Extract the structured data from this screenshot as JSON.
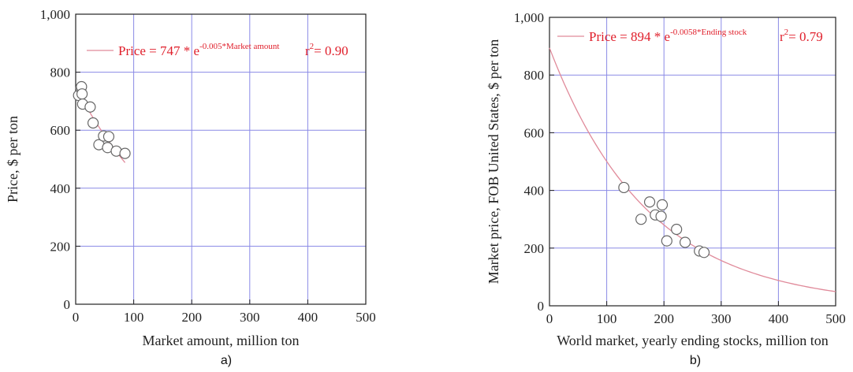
{
  "chart_data": [
    {
      "type": "scatter",
      "panel_label": "a)",
      "title": "",
      "xlabel": "Market amount, million ton",
      "ylabel": "Price, $ per ton",
      "xlim": [
        0,
        500
      ],
      "ylim": [
        0,
        1000
      ],
      "xticks": [
        "0",
        "100",
        "200",
        "300",
        "400",
        "500"
      ],
      "yticks": [
        "0",
        "200",
        "400",
        "600",
        "800",
        "1,000"
      ],
      "grid": true,
      "legend_position": "top",
      "colors": {
        "grid": "#8a8ae6",
        "fit": "#e08a9a",
        "marker_edge": "#666666",
        "annotation": "#e0202c"
      },
      "points": [
        {
          "x": 5,
          "y": 720
        },
        {
          "x": 9,
          "y": 745
        },
        {
          "x": 10,
          "y": 750
        },
        {
          "x": 11,
          "y": 725
        },
        {
          "x": 12,
          "y": 690
        },
        {
          "x": 25,
          "y": 680
        },
        {
          "x": 30,
          "y": 625
        },
        {
          "x": 40,
          "y": 550
        },
        {
          "x": 48,
          "y": 580
        },
        {
          "x": 55,
          "y": 540
        },
        {
          "x": 57,
          "y": 578
        },
        {
          "x": 70,
          "y": 528
        },
        {
          "x": 85,
          "y": 520
        }
      ],
      "fit": {
        "label_prefix": "Price = 747 * e",
        "label_exponent": "-0.005*Market amount",
        "r2_prefix": "r",
        "r2_sup": "2",
        "r2_value": "= 0.90",
        "a": 747,
        "b": -0.005,
        "x_range": [
          0,
          85
        ]
      }
    },
    {
      "type": "scatter",
      "panel_label": "b)",
      "title": "",
      "xlabel": "World market, yearly ending stocks, million ton",
      "ylabel": "Market price, FOB United States, $ per ton",
      "xlim": [
        0,
        500
      ],
      "ylim": [
        0,
        1000
      ],
      "xticks": [
        "0",
        "100",
        "200",
        "300",
        "400",
        "500"
      ],
      "yticks": [
        "0",
        "200",
        "400",
        "600",
        "800",
        "1,000"
      ],
      "grid": true,
      "legend_position": "top",
      "colors": {
        "grid": "#8a8ae6",
        "fit": "#e08a9a",
        "marker_edge": "#666666",
        "annotation": "#e0202c"
      },
      "points": [
        {
          "x": 130,
          "y": 410
        },
        {
          "x": 160,
          "y": 300
        },
        {
          "x": 175,
          "y": 360
        },
        {
          "x": 185,
          "y": 315
        },
        {
          "x": 195,
          "y": 310
        },
        {
          "x": 197,
          "y": 350
        },
        {
          "x": 205,
          "y": 225
        },
        {
          "x": 222,
          "y": 265
        },
        {
          "x": 237,
          "y": 220
        },
        {
          "x": 262,
          "y": 190
        },
        {
          "x": 270,
          "y": 185
        }
      ],
      "fit": {
        "label_prefix": "Price = 894 * e",
        "label_exponent": "-0.0058*Ending stock",
        "r2_prefix": "r",
        "r2_sup": "2",
        "r2_value": "= 0.79",
        "a": 894,
        "b": -0.0058,
        "x_range": [
          0,
          500
        ]
      }
    }
  ]
}
